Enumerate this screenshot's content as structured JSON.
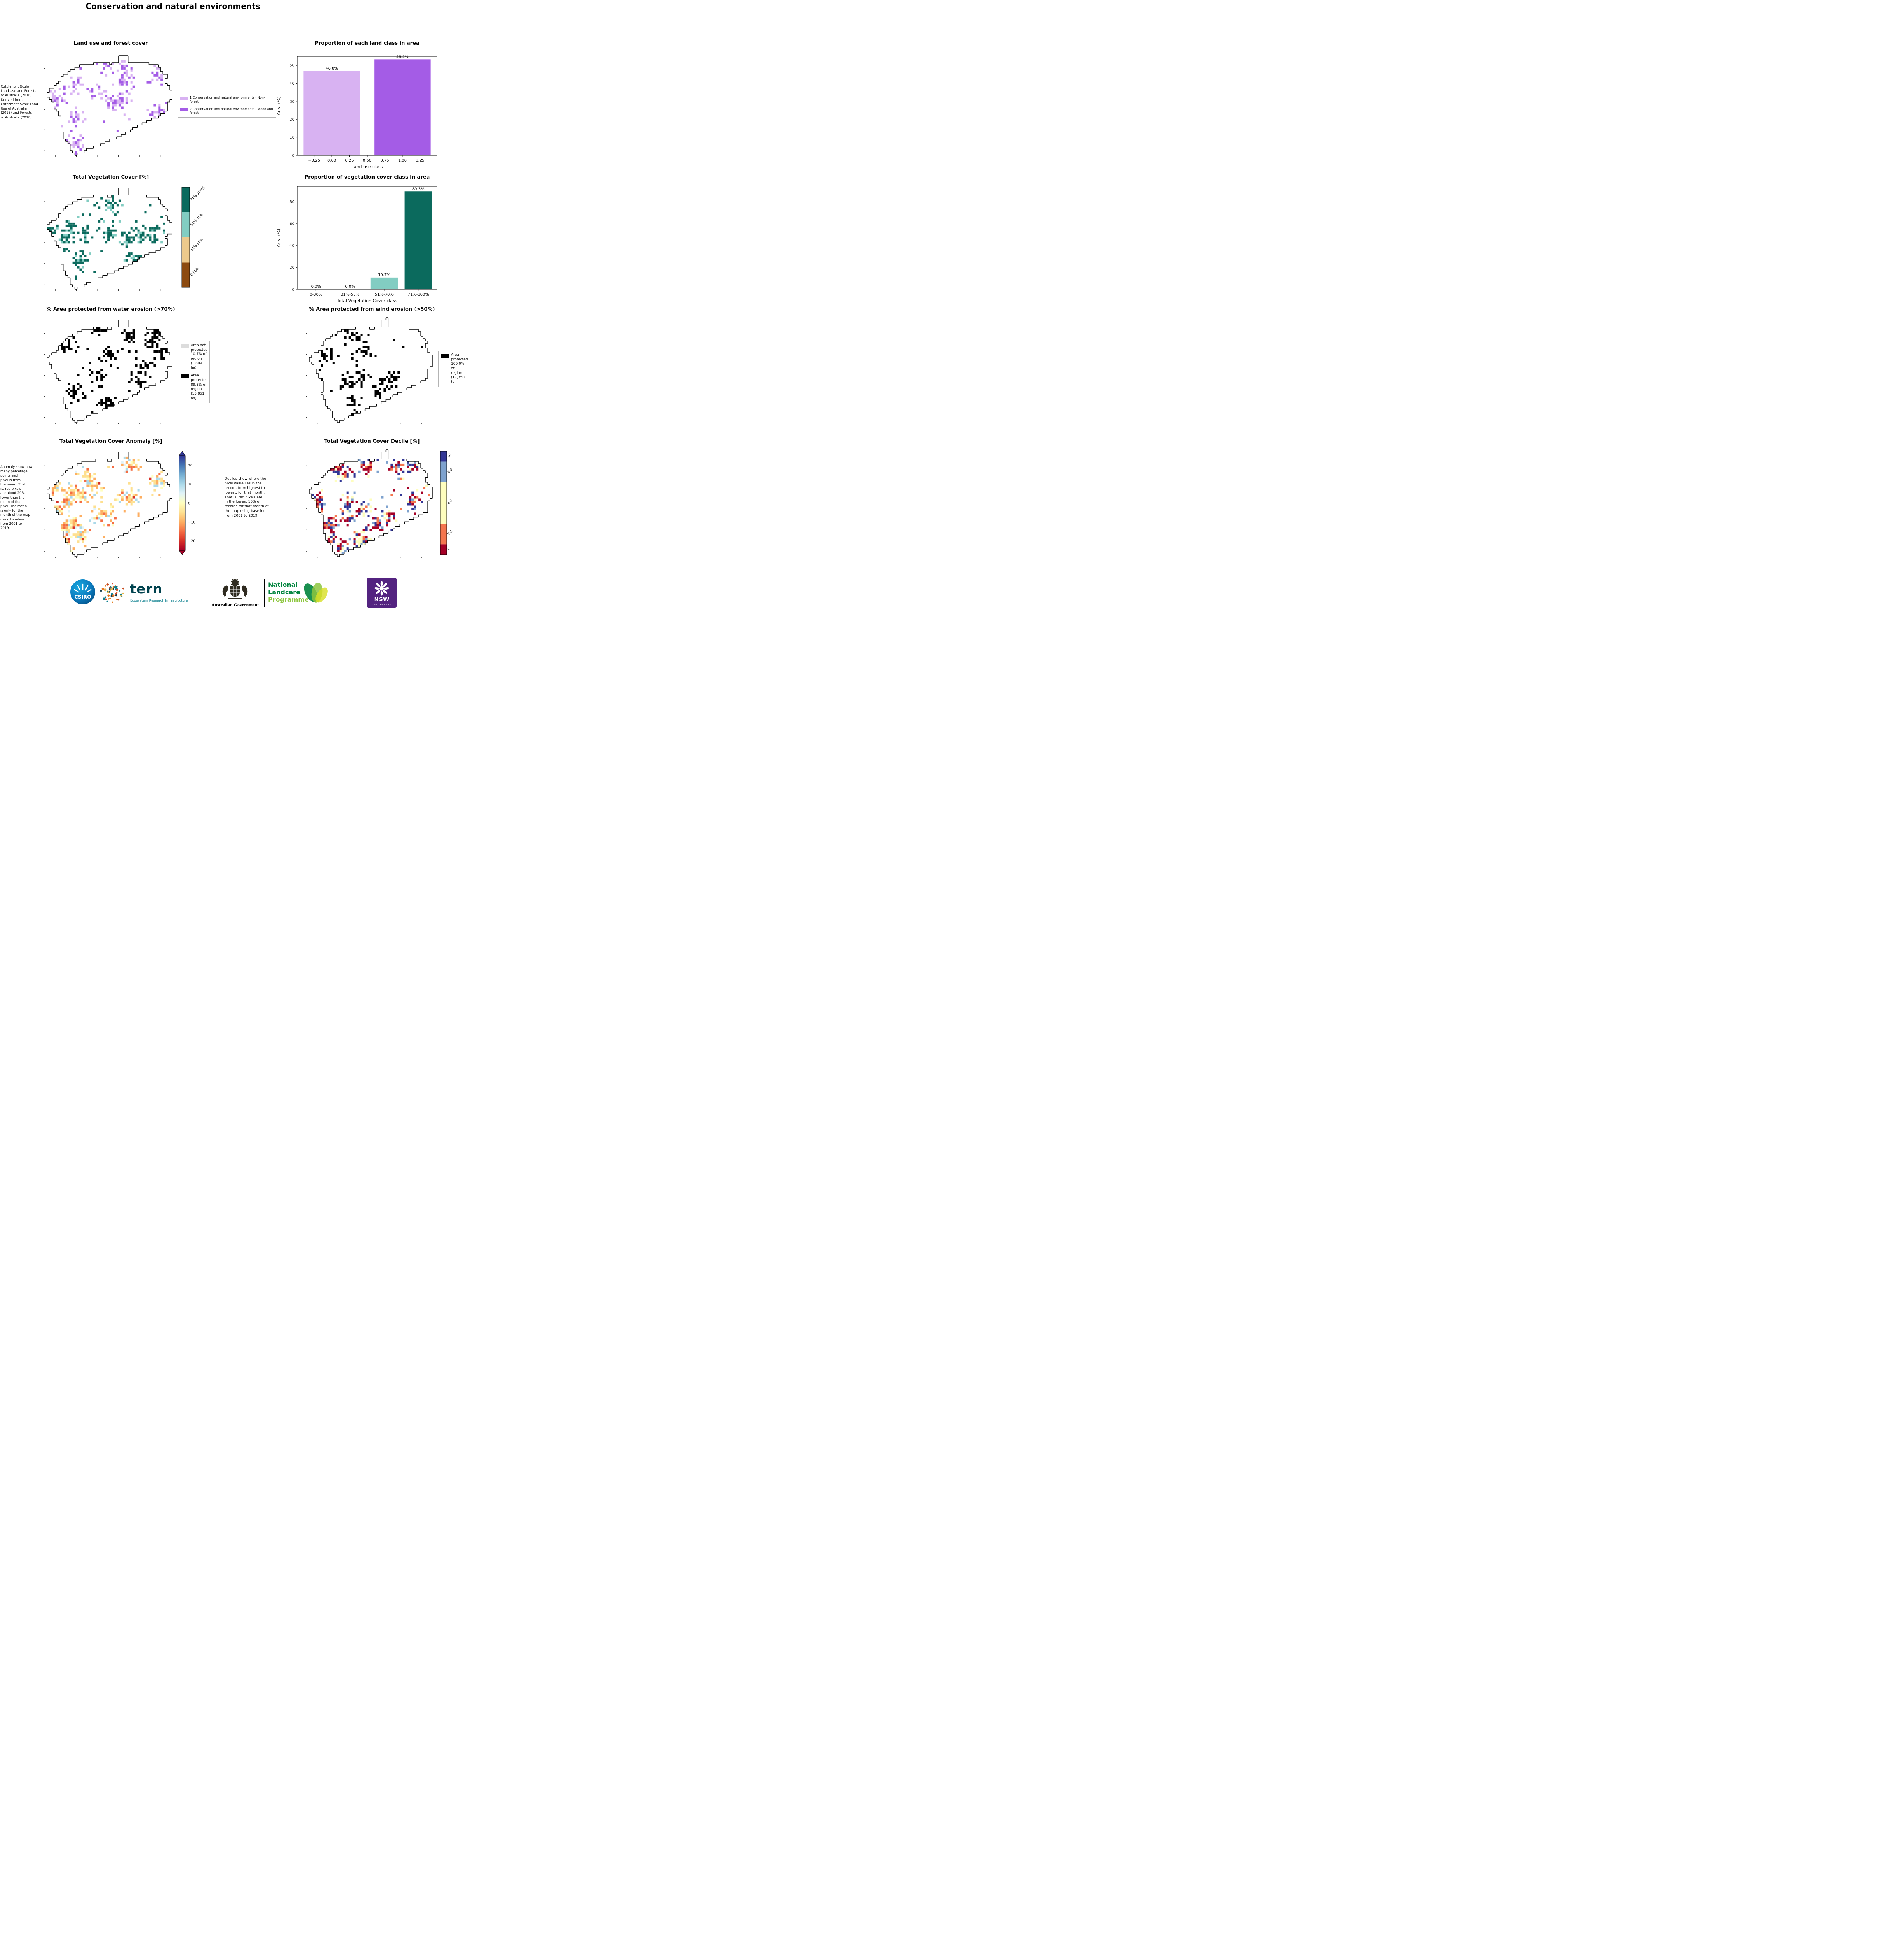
{
  "page": {
    "title": "Conservation and natural environments"
  },
  "panels": {
    "landuse": {
      "title": "Land use and forest cover",
      "annotation": " Catchment Scale\nLand Use and Forests\nof Australia (2018)\nDerived from\nCatchment Scale Land\nUse of Australia\n(2018) and Forests\nof Australia (2018)",
      "legend": {
        "items": [
          {
            "label": "1 Conservation and natural environments - Non-\nforest",
            "color": "#d8b2f2"
          },
          {
            "label": "2 Conservation and natural environments - Woodland\nforest",
            "color": "#a45ce6"
          }
        ]
      }
    },
    "vegcover": {
      "title": "Total Vegetation Cover [%]",
      "colorbar": {
        "classes": [
          {
            "label": "71%-100%",
            "color": "#0b6a5d",
            "frac": 0.25
          },
          {
            "label": "51%-70%",
            "color": "#82cdc2",
            "frac": 0.25
          },
          {
            "label": "31%-50%",
            "color": "#ecc98c",
            "frac": 0.25
          },
          {
            "label": "0-30%",
            "color": "#8c4a10",
            "frac": 0.25
          }
        ]
      }
    },
    "water": {
      "title": "% Area protected from water erosion (>70%)",
      "legend": {
        "items": [
          {
            "label": "Area not\nprotected\n10.7% of\nregion\n(1,899 ha)",
            "color": "#dcdcdc"
          },
          {
            "label": "Area\nprotected\n89.3% of\nregion\n(15,851\nha)",
            "color": "#000000"
          }
        ]
      }
    },
    "wind": {
      "title": "% Area protected from wind erosion (>50%)",
      "legend": {
        "items": [
          {
            "label": "Area\nprotected\n100.0% of\nregion\n(17,750\nha)",
            "color": "#000000"
          }
        ]
      }
    },
    "anomaly": {
      "title": "Total Vegetation Cover Anomaly [%]",
      "annotation": "Anomaly show how\nmany percetage\npoints each\npixel is from\nthe mean. That\nis, red pixels\nare about 20%\nlower than the\nmean of that\npixel. The mean\nis only for the\nmonth of the map\nusing baseline\nfrom 2001 to\n2019.",
      "colorbar": {
        "range": [
          -25,
          25
        ],
        "ticks": [
          20,
          10,
          0,
          -10,
          -20
        ],
        "tick_labels": [
          "20",
          "10",
          "0",
          "−10",
          "−20"
        ],
        "stops": [
          "#a50026",
          "#d73027",
          "#f46d43",
          "#fdae61",
          "#fee090",
          "#ffffbf",
          "#e0f3f8",
          "#abd9e9",
          "#74add1",
          "#4575b4",
          "#313695"
        ]
      }
    },
    "decile": {
      "title": "Total Vegetation Cover Decile [%]",
      "annotation": "Deciles show where the\npixel value lies in the\nrecord, from highest to\nlowest, for that month.\nThat is, red pixels are\nin the lowest 10% of\nrecords for that month of\nthe map using baseline\nfrom 2001 to 2019.",
      "colorbar": {
        "classes": [
          {
            "label": "10",
            "color": "#313695",
            "frac": 0.1
          },
          {
            "label": "8-9",
            "color": "#7ea2ce",
            "frac": 0.2
          },
          {
            "label": "4-7",
            "color": "#fefebe",
            "frac": 0.4
          },
          {
            "label": "2-3",
            "color": "#f4764f",
            "frac": 0.2
          },
          {
            "label": "1",
            "color": "#a50026",
            "frac": 0.1
          }
        ]
      }
    }
  },
  "chart_data": [
    {
      "id": "landclass",
      "type": "bar",
      "title": "Proportion of each land class in area",
      "xlabel": "Land use class",
      "ylabel": "Area (%)",
      "x": [
        0,
        1
      ],
      "values": [
        46.8,
        53.2
      ],
      "bar_labels": [
        "46.8%",
        "53.2%"
      ],
      "bar_colors": [
        "#d8b2f2",
        "#a45ce6"
      ],
      "bar_width": 0.8,
      "xlim": [
        -0.49,
        1.49
      ],
      "ylim": [
        0,
        55
      ],
      "xticks": [
        -0.25,
        0.0,
        0.25,
        0.5,
        0.75,
        1.0,
        1.25
      ],
      "xtick_labels": [
        "−0.25",
        "0.00",
        "0.25",
        "0.50",
        "0.75",
        "1.00",
        "1.25"
      ],
      "yticks": [
        0,
        10,
        20,
        30,
        40,
        50
      ],
      "legend_position": "none",
      "grid": false
    },
    {
      "id": "vegclass",
      "type": "bar",
      "title": "Proportion of vegetation cover class in area",
      "xlabel": "Total Vegetation Cover class",
      "ylabel": "Area (%)",
      "x": [
        0,
        1,
        2,
        3
      ],
      "categories": [
        "0-30%",
        "31%-50%",
        "51%-70%",
        "71%-100%"
      ],
      "values": [
        0.0,
        0.0,
        10.7,
        89.3
      ],
      "bar_labels": [
        "0.0%",
        "0.0%",
        "10.7%",
        "89.3%"
      ],
      "bar_colors": [
        "#8c4a10",
        "#ecc98c",
        "#82cdc2",
        "#0b6a5d"
      ],
      "bar_width": 0.8,
      "xlim": [
        -0.55,
        3.55
      ],
      "ylim": [
        0,
        94
      ],
      "xticks": [
        0,
        1,
        2,
        3
      ],
      "xtick_labels": [
        "0-30%",
        "31%-50%",
        "51%-70%",
        "71%-100%"
      ],
      "yticks": [
        0,
        20,
        40,
        60,
        80
      ],
      "legend_position": "none",
      "grid": false
    }
  ],
  "footer": {
    "csiro": {
      "label": "CSIRO"
    },
    "tern": {
      "name": "tern",
      "subtitle": "Ecosystem Research Infrastructure"
    },
    "gov": {
      "label": "Australian Government"
    },
    "landcare": {
      "line1": "National",
      "line2": "Landcare",
      "line3": "Programme"
    },
    "nsw": {
      "label": "NSW",
      "sub": "GOVERNMENT"
    }
  }
}
